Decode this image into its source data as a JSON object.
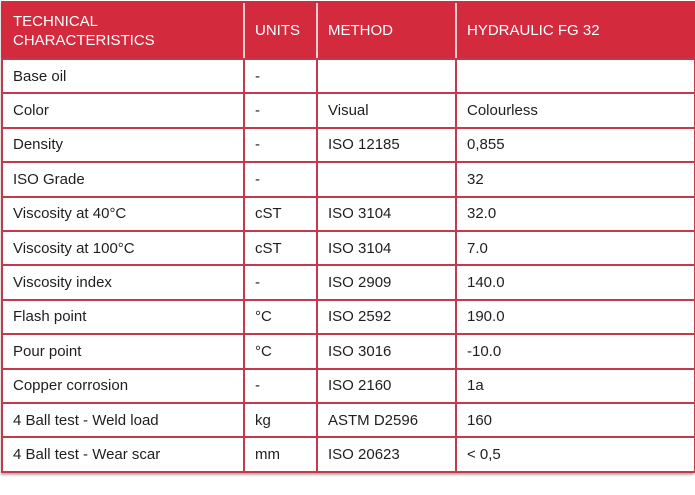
{
  "table": {
    "title": "HYDRAULIC FG 32 technical characteristics",
    "columns": [
      {
        "label": "TECHNICAL CHARACTERISTICS"
      },
      {
        "label": "UNITS"
      },
      {
        "label": "METHOD"
      },
      {
        "label": "HYDRAULIC FG 32"
      }
    ],
    "rows": [
      {
        "characteristic": "Base oil",
        "units": "-",
        "method": "",
        "value": ""
      },
      {
        "characteristic": "Color",
        "units": "-",
        "method": "Visual",
        "value": "Colourless"
      },
      {
        "characteristic": "Density",
        "units": "-",
        "method": "ISO 12185",
        "value": "0,855"
      },
      {
        "characteristic": "ISO Grade",
        "units": "-",
        "method": "",
        "value": "32"
      },
      {
        "characteristic": "Viscosity at 40°C",
        "units": "cST",
        "method": "ISO 3104",
        "value": "32.0"
      },
      {
        "characteristic": "Viscosity at 100°C",
        "units": "cST",
        "method": "ISO 3104",
        "value": "7.0"
      },
      {
        "characteristic": "Viscosity index",
        "units": "-",
        "method": "ISO 2909",
        "value": "140.0"
      },
      {
        "characteristic": "Flash point",
        "units": "°C",
        "method": "ISO 2592",
        "value": "190.0"
      },
      {
        "characteristic": "Pour point",
        "units": "°C",
        "method": "ISO 3016",
        "value": "-10.0"
      },
      {
        "characteristic": "Copper corrosion",
        "units": "-",
        "method": "ISO 2160",
        "value": "1a"
      },
      {
        "characteristic": "4 Ball test - Weld load",
        "units": "kg",
        "method": "ASTM D2596",
        "value": "160"
      },
      {
        "characteristic": "4 Ball test - Wear scar",
        "units": "mm",
        "method": "ISO 20623",
        "value": "< 0,5"
      }
    ]
  },
  "colors": {
    "header_bg": "#d32a3e",
    "header_text": "#ffffff",
    "header_divider": "#efccd0",
    "border": "#c23a4b",
    "row_bg": "#ffffff",
    "text": "#1f1f1f"
  }
}
